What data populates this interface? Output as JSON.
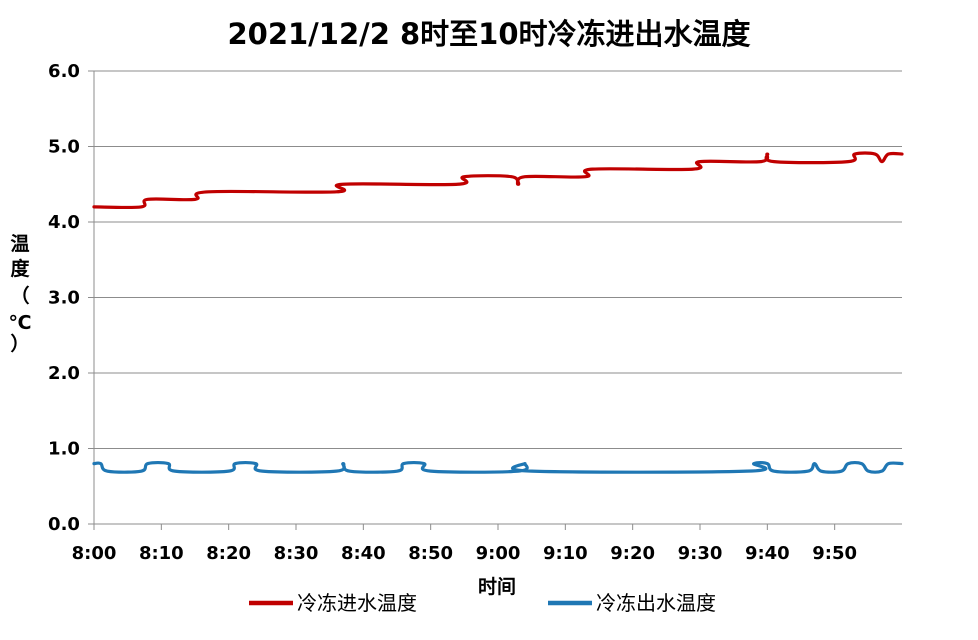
{
  "chart_data": {
    "type": "line",
    "title": "2021/12/2   8时至10时冷冻进出水温度",
    "xlabel": "时间",
    "ylabel_chars": [
      "温",
      "度",
      "（",
      "℃",
      "）"
    ],
    "ylim": [
      0,
      6
    ],
    "y_ticks": [
      "0.0",
      "1.0",
      "2.0",
      "3.0",
      "4.0",
      "5.0",
      "6.0"
    ],
    "x_ticks": [
      "8:00",
      "8:10",
      "8:20",
      "8:30",
      "8:40",
      "8:50",
      "9:00",
      "9:10",
      "9:20",
      "9:30",
      "9:40",
      "9:50"
    ],
    "x_range_minutes": [
      0,
      120
    ],
    "grid": "horizontal",
    "legend_position": "bottom",
    "series": [
      {
        "name": "冷冻进水温度",
        "color": "#c00000",
        "points": [
          [
            0,
            4.2
          ],
          [
            7,
            4.2
          ],
          [
            8,
            4.3
          ],
          [
            15,
            4.3
          ],
          [
            17,
            4.4
          ],
          [
            36,
            4.4
          ],
          [
            37,
            4.5
          ],
          [
            54,
            4.5
          ],
          [
            55,
            4.6
          ],
          [
            62,
            4.6
          ],
          [
            63,
            4.5
          ],
          [
            64,
            4.6
          ],
          [
            73,
            4.6
          ],
          [
            74,
            4.7
          ],
          [
            89,
            4.7
          ],
          [
            90,
            4.8
          ],
          [
            99,
            4.8
          ],
          [
            100,
            4.9
          ],
          [
            101,
            4.8
          ],
          [
            112,
            4.8
          ],
          [
            113,
            4.9
          ],
          [
            116,
            4.9
          ],
          [
            117,
            4.8
          ],
          [
            118,
            4.9
          ],
          [
            120,
            4.9
          ]
        ]
      },
      {
        "name": "冷冻出水温度",
        "color": "#1f77b4",
        "points": [
          [
            0,
            0.8
          ],
          [
            1,
            0.8
          ],
          [
            2,
            0.7
          ],
          [
            7,
            0.7
          ],
          [
            8,
            0.8
          ],
          [
            11,
            0.8
          ],
          [
            12,
            0.7
          ],
          [
            20,
            0.7
          ],
          [
            21,
            0.8
          ],
          [
            24,
            0.8
          ],
          [
            25,
            0.7
          ],
          [
            36,
            0.7
          ],
          [
            37,
            0.8
          ],
          [
            38,
            0.7
          ],
          [
            45,
            0.7
          ],
          [
            46,
            0.8
          ],
          [
            49,
            0.8
          ],
          [
            50,
            0.7
          ],
          [
            63,
            0.7
          ],
          [
            64,
            0.8
          ],
          [
            65,
            0.7
          ],
          [
            97,
            0.7
          ],
          [
            98,
            0.8
          ],
          [
            100,
            0.8
          ],
          [
            101,
            0.7
          ],
          [
            106,
            0.7
          ],
          [
            107,
            0.8
          ],
          [
            108,
            0.7
          ],
          [
            111,
            0.7
          ],
          [
            112,
            0.8
          ],
          [
            114,
            0.8
          ],
          [
            115,
            0.7
          ],
          [
            117,
            0.7
          ],
          [
            118,
            0.8
          ],
          [
            120,
            0.8
          ]
        ]
      }
    ]
  }
}
